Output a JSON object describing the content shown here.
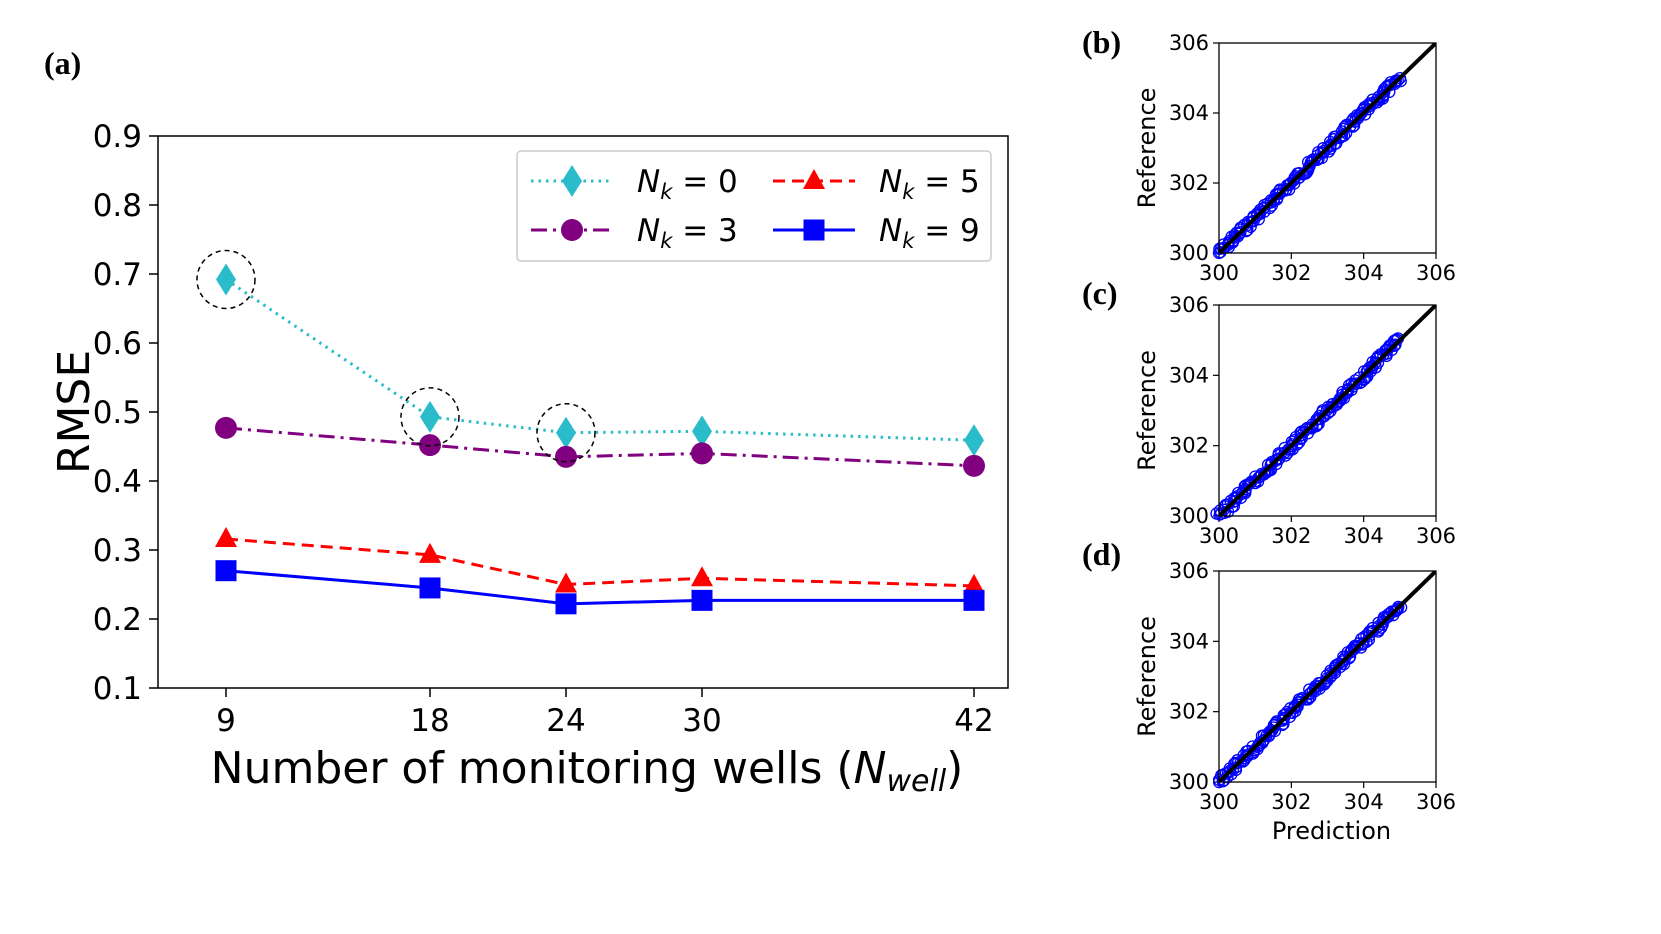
{
  "chart_data": [
    {
      "panel": "(a)",
      "type": "line",
      "xlabel_main": "Number of monitoring wells (",
      "xlabel_sym": "N",
      "xlabel_sub": "well",
      "xlabel_close": ")",
      "ylabel": "RMSE",
      "categories": [
        "9",
        "18",
        "24",
        "30",
        "42"
      ],
      "x": [
        9,
        18,
        24,
        30,
        42
      ],
      "ylim": [
        0.1,
        0.9
      ],
      "yticks": [
        "0.1",
        "0.2",
        "0.3",
        "0.4",
        "0.5",
        "0.6",
        "0.7",
        "0.8",
        "0.9"
      ],
      "series": [
        {
          "name": "N_k = 0",
          "sub": "k",
          "value_label": "= 0",
          "color": "#2bbccc",
          "marker": "diamond",
          "dash": "dotted",
          "values": [
            0.692,
            0.493,
            0.47,
            0.472,
            0.459
          ]
        },
        {
          "name": "N_k = 3",
          "sub": "k",
          "value_label": "= 3",
          "color": "#800080",
          "marker": "circle",
          "dash": "dashdot",
          "values": [
            0.477,
            0.452,
            0.435,
            0.44,
            0.422
          ]
        },
        {
          "name": "N_k = 5",
          "sub": "k",
          "value_label": "= 5",
          "color": "#ff0000",
          "marker": "triangle",
          "dash": "dashed",
          "values": [
            0.316,
            0.293,
            0.25,
            0.259,
            0.248
          ]
        },
        {
          "name": "N_k = 9",
          "sub": "k",
          "value_label": "= 9",
          "color": "#0000ff",
          "marker": "square",
          "dash": "solid",
          "values": [
            0.27,
            0.245,
            0.222,
            0.227,
            0.227
          ]
        }
      ],
      "highlighted_points": [
        {
          "series": 0,
          "index": 0
        },
        {
          "series": 0,
          "index": 1
        },
        {
          "series": 0,
          "index": 2
        }
      ],
      "legend_position": "top-right"
    },
    {
      "panel": "(b)",
      "type": "scatter",
      "ylabel": "Reference",
      "xlabel": "",
      "xlim": [
        300,
        306
      ],
      "ylim": [
        300,
        306
      ],
      "xticks": [
        "300",
        "302",
        "304",
        "306"
      ],
      "yticks": [
        "300",
        "302",
        "304",
        "306"
      ],
      "data_range": [
        300,
        305
      ],
      "color": "#0000ff"
    },
    {
      "panel": "(c)",
      "type": "scatter",
      "ylabel": "Reference",
      "xlabel": "",
      "xlim": [
        300,
        306
      ],
      "ylim": [
        300,
        306
      ],
      "xticks": [
        "300",
        "302",
        "304",
        "306"
      ],
      "yticks": [
        "300",
        "302",
        "304",
        "306"
      ],
      "data_range": [
        300,
        305
      ],
      "color": "#0000ff"
    },
    {
      "panel": "(d)",
      "type": "scatter",
      "ylabel": "Reference",
      "xlabel": "Prediction",
      "xlim": [
        300,
        306
      ],
      "ylim": [
        300,
        306
      ],
      "xticks": [
        "300",
        "302",
        "304",
        "306"
      ],
      "yticks": [
        "300",
        "302",
        "304",
        "306"
      ],
      "data_range": [
        300,
        305
      ],
      "color": "#0000ff"
    }
  ]
}
